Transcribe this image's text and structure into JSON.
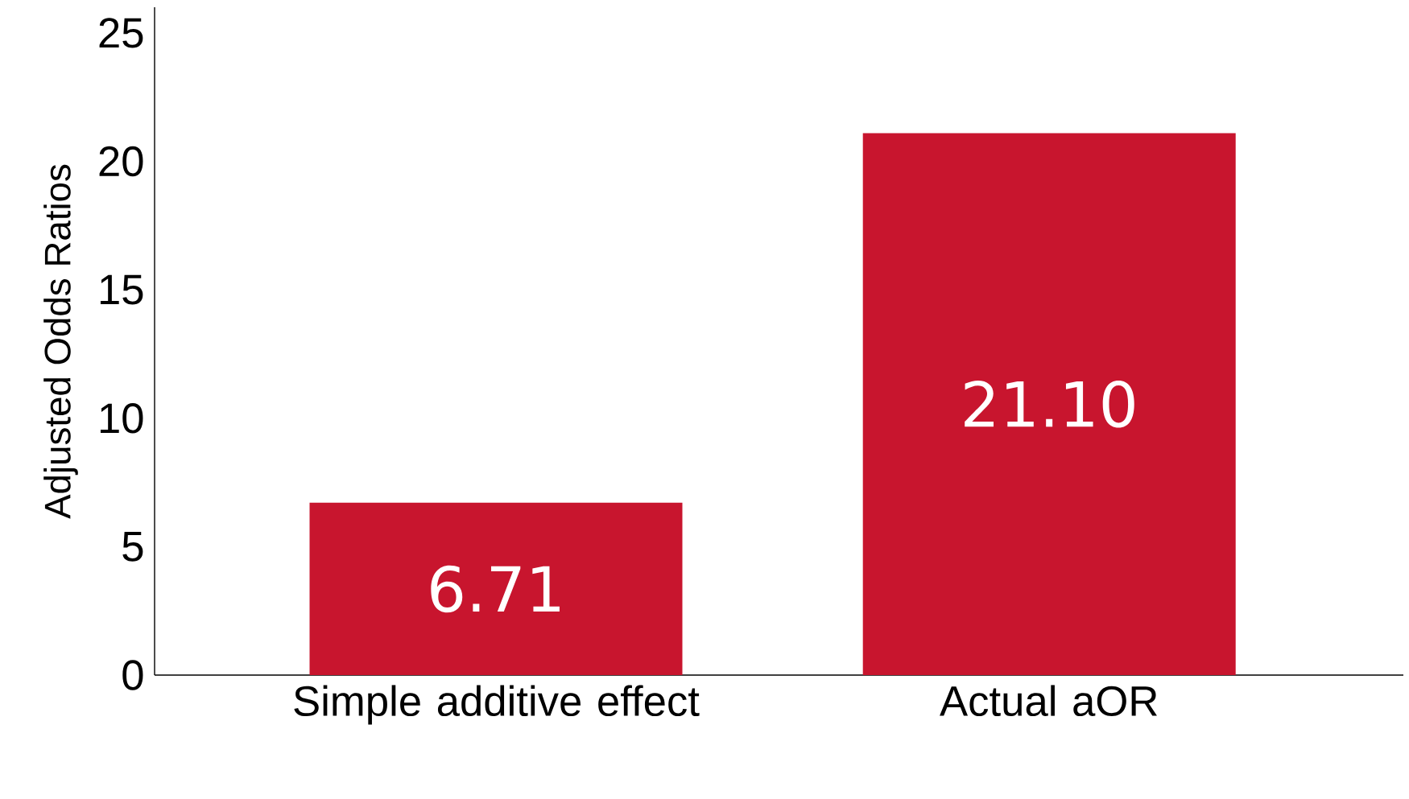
{
  "chart_data": {
    "type": "bar",
    "ylabel": "Adjusted Odds Ratios",
    "categories": [
      "Simple additive effect",
      "Actual aOR"
    ],
    "values": [
      6.71,
      21.1
    ],
    "value_labels": [
      "6.71",
      "21.10"
    ],
    "color": "#c8152e",
    "ylim": [
      0,
      26
    ],
    "yticks": [
      0,
      5,
      10,
      15,
      20,
      25
    ],
    "grid": false
  }
}
